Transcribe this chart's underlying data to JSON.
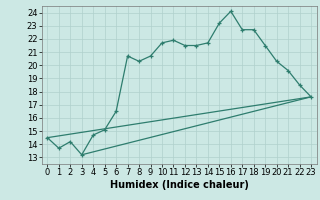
{
  "xlabel": "Humidex (Indice chaleur)",
  "xlim": [
    -0.5,
    23.5
  ],
  "ylim": [
    12.5,
    24.5
  ],
  "xticks": [
    0,
    1,
    2,
    3,
    4,
    5,
    6,
    7,
    8,
    9,
    10,
    11,
    12,
    13,
    14,
    15,
    16,
    17,
    18,
    19,
    20,
    21,
    22,
    23
  ],
  "yticks": [
    13,
    14,
    15,
    16,
    17,
    18,
    19,
    20,
    21,
    22,
    23,
    24
  ],
  "bg_color": "#cce8e4",
  "line_color": "#2e7d6e",
  "grid_color": "#b0d0cc",
  "line1_x": [
    0,
    1,
    2,
    3,
    4,
    5,
    6,
    7,
    8,
    9,
    10,
    11,
    12,
    13,
    14,
    15,
    16,
    17,
    18,
    19,
    20,
    21,
    22,
    23
  ],
  "line1_y": [
    14.5,
    13.7,
    14.2,
    13.2,
    14.7,
    15.1,
    16.5,
    20.7,
    20.3,
    20.7,
    21.7,
    21.9,
    21.5,
    21.5,
    21.7,
    23.2,
    24.1,
    22.7,
    22.7,
    21.5,
    20.3,
    19.6,
    18.5,
    17.6
  ],
  "line2_x": [
    0,
    23
  ],
  "line2_y": [
    14.5,
    17.6
  ],
  "line3_x": [
    3,
    23
  ],
  "line3_y": [
    13.2,
    17.6
  ],
  "axis_fontsize": 7,
  "tick_fontsize": 6
}
